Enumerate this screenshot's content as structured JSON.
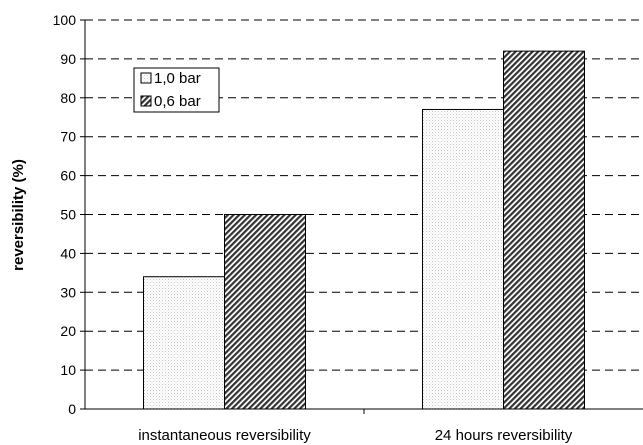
{
  "chart_data": {
    "type": "bar",
    "title": "",
    "xlabel": "",
    "ylabel": "reversibility (%)",
    "ylim": [
      0,
      100
    ],
    "yticks": [
      0,
      10,
      20,
      30,
      40,
      50,
      60,
      70,
      80,
      90,
      100
    ],
    "grid": "horizontal dashed",
    "legend_position": "top-left",
    "categories": [
      "instantaneous reversibility",
      "24 hours reversibility"
    ],
    "series": [
      {
        "name": "1,0 bar",
        "values": [
          34,
          77
        ],
        "fill": "#f4f4f4",
        "pattern": "dotted"
      },
      {
        "name": "0,6 bar",
        "values": [
          50,
          92
        ],
        "fill": "#555555",
        "pattern": "diagonal-hatch"
      }
    ]
  }
}
